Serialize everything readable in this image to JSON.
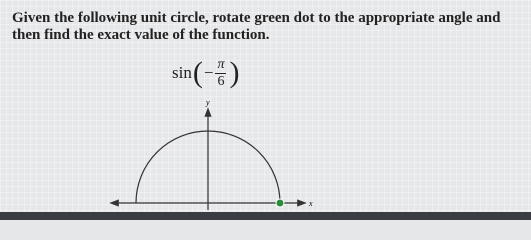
{
  "prompt": "Given the following unit circle, rotate green dot to the appropriate angle and then find the exact value of the function.",
  "expression": {
    "function": "sin",
    "sign": "−",
    "numerator": "π",
    "denominator": "6"
  },
  "axes": {
    "y": "y",
    "x": "x"
  }
}
